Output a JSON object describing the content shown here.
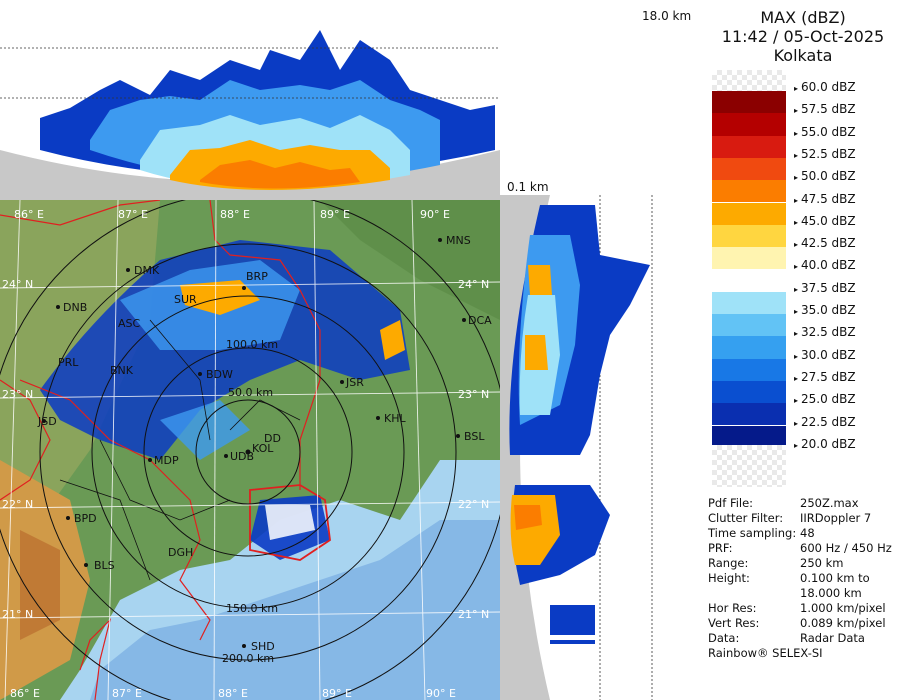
{
  "header": {
    "product": "MAX (dBZ)",
    "datetime": "11:42 / 05-Oct-2025",
    "station": "Kolkata"
  },
  "top_profile": {
    "height_top_label": "18.0 km"
  },
  "side_profile": {
    "height_bottom_label": "0.1 km"
  },
  "legend": {
    "unit": "dBZ",
    "levels": [
      {
        "label": "60.0 dBZ",
        "color": "transparent"
      },
      {
        "label": "57.5 dBZ",
        "color": "#8b0000"
      },
      {
        "label": "55.0 dBZ",
        "color": "#b40000"
      },
      {
        "label": "52.5 dBZ",
        "color": "#d81b10"
      },
      {
        "label": "50.0 dBZ",
        "color": "#f04a10"
      },
      {
        "label": "47.5 dBZ",
        "color": "#fb7d00"
      },
      {
        "label": "45.0 dBZ",
        "color": "#fdaa00"
      },
      {
        "label": "42.5 dBZ",
        "color": "#ffd640"
      },
      {
        "label": "40.0 dBZ",
        "color": "#fff4b0"
      },
      {
        "label": "37.5 dBZ",
        "color": "#ffffff"
      },
      {
        "label": "35.0 dBZ",
        "color": "#9fe2f8"
      },
      {
        "label": "32.5 dBZ",
        "color": "#62c3f5"
      },
      {
        "label": "30.0 dBZ",
        "color": "#35a0f0"
      },
      {
        "label": "27.5 dBZ",
        "color": "#1878e6"
      },
      {
        "label": "25.0 dBZ",
        "color": "#0a4fd0"
      },
      {
        "label": "22.5 dBZ",
        "color": "#0a2fb0"
      },
      {
        "label": "20.0 dBZ",
        "color": "#051a8a"
      }
    ]
  },
  "info": [
    {
      "key": "Pdf File:",
      "value": "250Z.max"
    },
    {
      "key": "Clutter Filter:",
      "value": "IIRDoppler 7"
    },
    {
      "key": "Time sampling:",
      "value": "48"
    },
    {
      "key": "PRF:",
      "value": "600 Hz / 450 Hz"
    },
    {
      "key": "Range:",
      "value": "250 km"
    },
    {
      "key": "Height:",
      "value": "0.100 km to"
    },
    {
      "key": "",
      "value": "18.000 km"
    },
    {
      "key": "Hor Res:",
      "value": "1.000 km/pixel"
    },
    {
      "key": "Vert Res:",
      "value": "0.089 km/pixel"
    },
    {
      "key": "Data:",
      "value": "Radar Data"
    }
  ],
  "credit": "Rainbow® SELEX-SI",
  "map": {
    "lon_labels_top": [
      "86° E",
      "87° E",
      "88° E",
      "89° E",
      "90° E"
    ],
    "lon_labels_bottom": [
      "86° E",
      "87° E",
      "88° E",
      "89° E",
      "90° E"
    ],
    "lat_labels_left": [
      "24° N",
      "23° N",
      "22° N",
      "21° N"
    ],
    "lat_labels_right": [
      "24° N",
      "23° N",
      "22° N",
      "21° N"
    ],
    "range_rings": [
      "50.0 km",
      "100.0 km",
      "150.0 km",
      "200.0 km"
    ],
    "cities": [
      "MNS",
      "DMK",
      "DNB",
      "BRP",
      "DCA",
      "SUR",
      "ASC",
      "PRL",
      "BNK",
      "BDW",
      "JSR",
      "JSD",
      "KHL",
      "BSL",
      "MDP",
      "UDB",
      "DD",
      "KOL",
      "BPD",
      "DGH",
      "BLS",
      "SHD"
    ]
  }
}
